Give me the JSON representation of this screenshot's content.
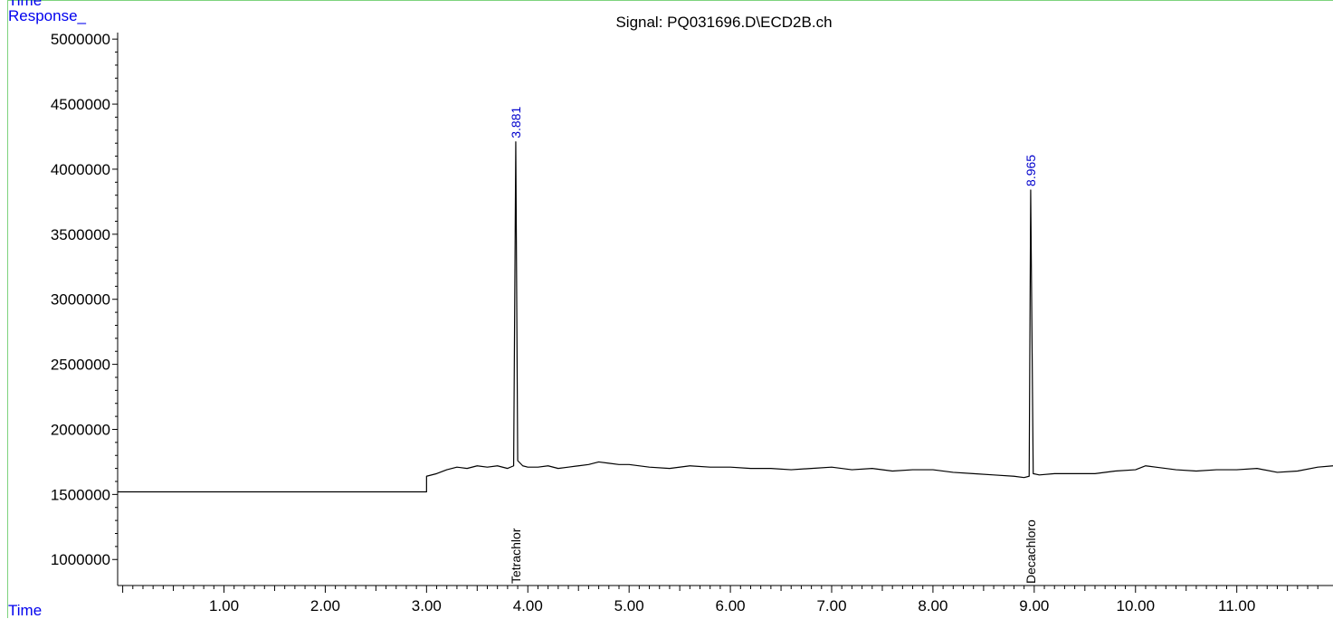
{
  "header": {
    "corner_label": "Time",
    "y_axis_label": "Response_",
    "x_axis_label": "Time"
  },
  "chart_data": {
    "type": "line",
    "title": "Signal: PQ031696.D\\ECD2B.ch",
    "xlabel": "Time",
    "ylabel": "Response_",
    "xlim": [
      -0.05,
      11.95
    ],
    "ylim": [
      800000,
      5050000
    ],
    "x_ticks": [
      "1.00",
      "2.00",
      "3.00",
      "4.00",
      "5.00",
      "6.00",
      "7.00",
      "8.00",
      "9.00",
      "10.00",
      "11.00"
    ],
    "y_ticks": [
      "1000000",
      "1500000",
      "2000000",
      "2500000",
      "3000000",
      "3500000",
      "4000000",
      "4500000",
      "5000000"
    ],
    "series": [
      {
        "color": "#000000",
        "x": [
          -0.05,
          3.0,
          3.0,
          3.1,
          3.2,
          3.3,
          3.4,
          3.5,
          3.6,
          3.7,
          3.8,
          3.86,
          3.881,
          3.9,
          3.95,
          4.0,
          4.1,
          4.2,
          4.3,
          4.4,
          4.5,
          4.6,
          4.7,
          4.8,
          4.9,
          5.0,
          5.2,
          5.4,
          5.6,
          5.8,
          6.0,
          6.2,
          6.4,
          6.6,
          6.8,
          7.0,
          7.2,
          7.4,
          7.6,
          7.8,
          8.0,
          8.2,
          8.4,
          8.6,
          8.8,
          8.9,
          8.95,
          8.965,
          8.99,
          9.05,
          9.2,
          9.4,
          9.6,
          9.8,
          10.0,
          10.1,
          10.2,
          10.4,
          10.6,
          10.8,
          11.0,
          11.2,
          11.4,
          11.6,
          11.8,
          11.95
        ],
        "y": [
          1520000,
          1520000,
          1640000,
          1660000,
          1690000,
          1710000,
          1700000,
          1720000,
          1710000,
          1720000,
          1700000,
          1720000,
          4210000,
          1760000,
          1720000,
          1710000,
          1710000,
          1720000,
          1700000,
          1710000,
          1720000,
          1730000,
          1750000,
          1740000,
          1730000,
          1730000,
          1710000,
          1700000,
          1720000,
          1710000,
          1710000,
          1700000,
          1700000,
          1690000,
          1700000,
          1710000,
          1690000,
          1700000,
          1680000,
          1690000,
          1690000,
          1670000,
          1660000,
          1650000,
          1640000,
          1630000,
          1640000,
          3840000,
          1660000,
          1650000,
          1660000,
          1660000,
          1660000,
          1680000,
          1690000,
          1720000,
          1710000,
          1690000,
          1680000,
          1690000,
          1690000,
          1700000,
          1670000,
          1680000,
          1710000,
          1720000
        ]
      }
    ],
    "annotations": [
      {
        "text": "3.881",
        "x": 3.881,
        "y": 4210000,
        "color": "#0000cc"
      },
      {
        "text": "8.965",
        "x": 8.965,
        "y": 3840000,
        "color": "#0000cc"
      }
    ],
    "peak_labels": [
      {
        "text": "Tetrachlor",
        "x": 3.881
      },
      {
        "text": "Decachloro",
        "x": 8.965
      }
    ],
    "grid": false
  }
}
